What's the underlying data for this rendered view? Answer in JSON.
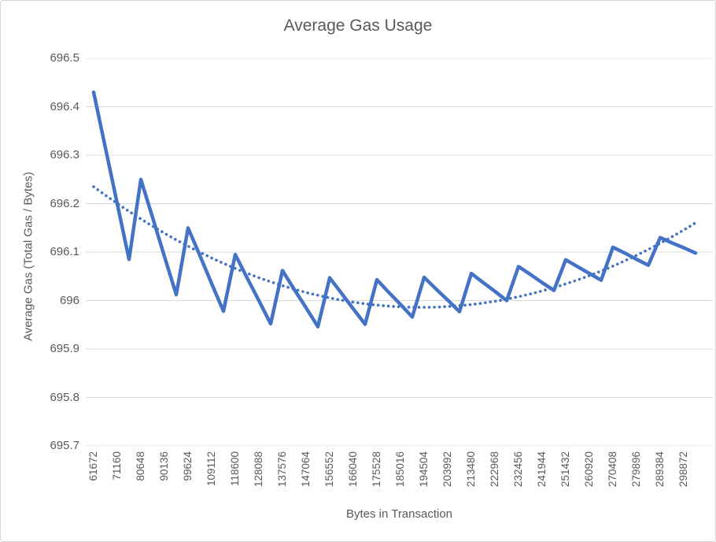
{
  "chart_data": {
    "type": "line",
    "title": "Average Gas Usage",
    "xlabel": "Bytes in Transaction",
    "ylabel": "Average Gas (Total Gas / Bytes)",
    "ylim": [
      695.7,
      696.5
    ],
    "y_tick_step": 0.1,
    "y_tick_labels": [
      "696.5",
      "696.4",
      "696.3",
      "696.2",
      "696.1",
      "696",
      "695.9",
      "695.8",
      "695.7"
    ],
    "x_start": 61672,
    "x_step": 4744,
    "x_tick_every": 2,
    "x_tick_labels": [
      "61672",
      "71160",
      "80648",
      "90136",
      "99624",
      "109112",
      "118600",
      "128088",
      "137576",
      "147064",
      "156552",
      "166040",
      "175528",
      "185016",
      "194504",
      "203992",
      "213480",
      "222968",
      "232456",
      "241944",
      "251432",
      "260920",
      "270408",
      "279896",
      "289384",
      "298872"
    ],
    "grid": "horizontal",
    "legend": "none",
    "colors": {
      "series": "#4472C4",
      "trendline": "#4472C4",
      "gridline": "#d9d9d9",
      "text": "#595959",
      "border": "#d6d6d6",
      "background": "#ffffff"
    },
    "series": [
      {
        "name": "average-gas",
        "style": "solid",
        "color": "#4472C4",
        "values": [
          696.43,
          696.315,
          696.2,
          696.085,
          696.25,
          696.171,
          696.091,
          696.012,
          696.15,
          696.093,
          696.035,
          695.978,
          696.095,
          696.047,
          696.0,
          695.952,
          696.062,
          696.023,
          695.985,
          695.946,
          696.047,
          696.015,
          695.983,
          695.951,
          696.043,
          696.017,
          695.992,
          695.966,
          696.048,
          696.024,
          696.001,
          695.977,
          696.056,
          696.037,
          696.019,
          696.0,
          696.07,
          696.054,
          696.037,
          696.021,
          696.084,
          696.07,
          696.056,
          696.042,
          696.11,
          696.098,
          696.085,
          696.073,
          696.13,
          696.119,
          696.109,
          696.098
        ]
      },
      {
        "name": "trendline",
        "style": "dotted",
        "color": "#4472C4",
        "fit": "polynomial_order_2",
        "coeff_a": 1.435e-11,
        "vertex_x": 193391,
        "vertex_y": 695.986,
        "x_range": [
          61672,
          304565
        ]
      }
    ]
  }
}
